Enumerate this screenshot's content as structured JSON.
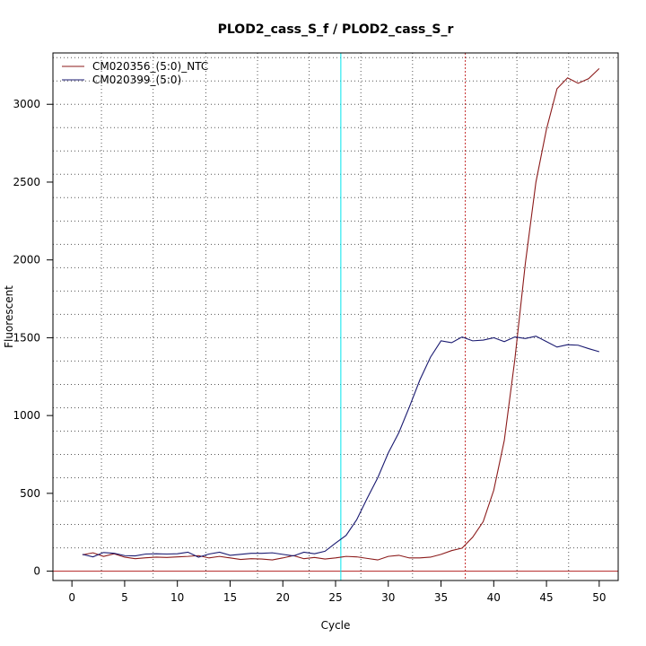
{
  "chart_data": {
    "type": "line",
    "title": "PLOD2_cass_S_f / PLOD2_cass_S_r",
    "xlabel": "Cycle",
    "ylabel": "Fluorescent",
    "xlim": [
      -1.8,
      51.8
    ],
    "ylim": [
      -60,
      3330
    ],
    "x_ticks": [
      0,
      5,
      10,
      15,
      20,
      25,
      30,
      35,
      40,
      45,
      50
    ],
    "y_ticks": [
      0,
      500,
      1000,
      1500,
      2000,
      2500,
      3000
    ],
    "grid": true,
    "vertical_grid_x": [
      2.8,
      7.7,
      12.7,
      17.6,
      22.5,
      27.4,
      32.3,
      37.3,
      42.2,
      47.1
    ],
    "horizontal_grid_y": [
      150,
      300,
      450,
      600,
      750,
      900,
      1050,
      1200,
      1350,
      1500,
      1650,
      1800,
      1950,
      2100,
      2250,
      2400,
      2550,
      2700,
      2850,
      3000,
      3150,
      3300
    ],
    "threshold_line_y": 0,
    "threshold_color": "#b22222",
    "markers": [
      {
        "x": 25.5,
        "color": "#00e5ee",
        "style": "solid"
      },
      {
        "x": 37.3,
        "color": "#cd3333",
        "style": "dotted"
      }
    ],
    "legend_position": "top-left",
    "x": [
      1,
      2,
      3,
      4,
      5,
      6,
      7,
      8,
      9,
      10,
      11,
      12,
      13,
      14,
      15,
      16,
      17,
      18,
      19,
      20,
      21,
      22,
      23,
      24,
      25,
      26,
      27,
      28,
      29,
      30,
      31,
      32,
      33,
      34,
      35,
      36,
      37,
      38,
      39,
      40,
      41,
      42,
      43,
      44,
      45,
      46,
      47,
      48,
      49,
      50
    ],
    "series": [
      {
        "name": "CM020356_(5:0)_NTC",
        "color": "#8b1a1a",
        "values": [
          105,
          118,
          95,
          112,
          90,
          80,
          86,
          90,
          88,
          92,
          95,
          100,
          85,
          95,
          85,
          75,
          80,
          78,
          72,
          85,
          100,
          80,
          88,
          78,
          85,
          95,
          92,
          82,
          72,
          95,
          102,
          85,
          85,
          90,
          108,
          132,
          148,
          218,
          318,
          520,
          840,
          1360,
          1980,
          2500,
          2840,
          3100,
          3170,
          3135,
          3165,
          3230
        ]
      },
      {
        "name": "CM020399_(5:0)",
        "color": "#191970",
        "values": [
          108,
          92,
          120,
          115,
          100,
          98,
          110,
          112,
          110,
          112,
          122,
          90,
          110,
          122,
          102,
          108,
          115,
          115,
          118,
          108,
          98,
          122,
          112,
          128,
          180,
          230,
          330,
          468,
          600,
          760,
          890,
          1055,
          1230,
          1375,
          1480,
          1468,
          1505,
          1480,
          1485,
          1500,
          1475,
          1505,
          1495,
          1510,
          1475,
          1440,
          1455,
          1452,
          1430,
          1410
        ]
      }
    ]
  }
}
